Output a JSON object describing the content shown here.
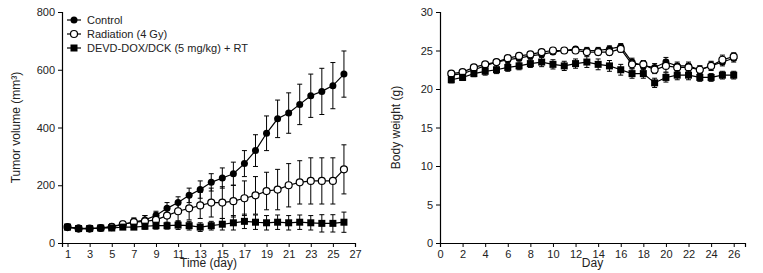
{
  "chart_data": [
    {
      "type": "line",
      "x_label": "Time (day)",
      "y_label": "Tumor volume (mm³)",
      "x": [
        1,
        2,
        3,
        4,
        5,
        6,
        7,
        8,
        9,
        10,
        11,
        12,
        13,
        14,
        15,
        16,
        17,
        18,
        19,
        20,
        21,
        22,
        23,
        24,
        25,
        26
      ],
      "xlim": [
        0.5,
        27
      ],
      "xticks": [
        1,
        3,
        5,
        7,
        9,
        11,
        13,
        15,
        17,
        19,
        21,
        23,
        25,
        27
      ],
      "ylim": [
        0,
        800
      ],
      "yticks": [
        0,
        200,
        400,
        600,
        800
      ],
      "legend": "upper left",
      "series": [
        {
          "name": "Control",
          "color": "#000000",
          "marker": "circle",
          "values": [
            55,
            52,
            50,
            52,
            58,
            65,
            72,
            80,
            95,
            120,
            140,
            165,
            185,
            210,
            225,
            240,
            275,
            320,
            380,
            430,
            450,
            480,
            510,
            525,
            545,
            585
          ],
          "errors": [
            5,
            5,
            5,
            5,
            8,
            10,
            12,
            15,
            15,
            20,
            20,
            25,
            30,
            30,
            35,
            40,
            45,
            55,
            60,
            65,
            70,
            70,
            75,
            80,
            80,
            80
          ]
        },
        {
          "name": "Radiation (4 Gy)",
          "color": "#000000",
          "marker": "open-circle",
          "values": [
            55,
            50,
            50,
            52,
            55,
            65,
            72,
            75,
            80,
            95,
            110,
            120,
            130,
            140,
            140,
            145,
            155,
            165,
            180,
            185,
            200,
            210,
            215,
            215,
            215,
            255
          ],
          "errors": [
            5,
            5,
            5,
            8,
            8,
            10,
            15,
            20,
            25,
            30,
            35,
            40,
            45,
            50,
            55,
            55,
            60,
            65,
            65,
            70,
            75,
            75,
            80,
            80,
            80,
            85
          ]
        },
        {
          "name": "DEVD-DOX/DCK (5 mg/kg) + RT",
          "color": "#000000",
          "marker": "square",
          "values": [
            55,
            50,
            50,
            52,
            52,
            55,
            55,
            58,
            60,
            60,
            62,
            60,
            55,
            60,
            65,
            70,
            75,
            72,
            70,
            72,
            70,
            72,
            70,
            68,
            68,
            72
          ],
          "errors": [
            5,
            5,
            5,
            5,
            5,
            5,
            8,
            10,
            12,
            12,
            15,
            15,
            15,
            15,
            20,
            25,
            25,
            25,
            25,
            25,
            25,
            25,
            25,
            30,
            30,
            35
          ]
        }
      ]
    },
    {
      "type": "line",
      "x_label": "Day",
      "y_label": "Body weight (g)",
      "x": [
        1,
        2,
        3,
        4,
        5,
        6,
        7,
        8,
        9,
        10,
        11,
        12,
        13,
        14,
        15,
        16,
        17,
        18,
        19,
        20,
        21,
        22,
        23,
        24,
        25,
        26
      ],
      "xlim": [
        0,
        27
      ],
      "xticks": [
        0,
        2,
        4,
        6,
        8,
        10,
        12,
        14,
        16,
        18,
        20,
        22,
        24,
        26
      ],
      "ylim": [
        0,
        30
      ],
      "yticks": [
        0,
        5,
        10,
        15,
        20,
        25,
        30
      ],
      "series": [
        {
          "color": "#000000",
          "marker": "circle",
          "values": [
            21.8,
            22.0,
            22.5,
            23.0,
            23.5,
            23.8,
            24.0,
            24.3,
            24.5,
            24.8,
            25.0,
            25.2,
            25.0,
            25.0,
            25.2,
            25.5,
            23.5,
            23.0,
            22.8,
            23.5,
            23.0,
            23.0,
            22.5,
            23.0,
            23.5,
            24.0
          ],
          "errors": [
            0.3,
            0.3,
            0.3,
            0.3,
            0.3,
            0.3,
            0.3,
            0.3,
            0.3,
            0.3,
            0.3,
            0.3,
            0.4,
            0.4,
            0.4,
            0.4,
            0.5,
            0.5,
            0.5,
            0.6,
            0.5,
            0.5,
            0.5,
            0.5,
            0.5,
            0.5
          ]
        },
        {
          "color": "#000000",
          "marker": "open-circle",
          "values": [
            22.0,
            22.2,
            22.8,
            23.2,
            23.5,
            24.0,
            24.3,
            24.5,
            24.8,
            25.0,
            25.0,
            25.0,
            24.8,
            24.8,
            24.8,
            25.2,
            23.2,
            23.2,
            22.5,
            23.0,
            22.8,
            22.8,
            22.5,
            23.0,
            23.8,
            24.2
          ],
          "errors": [
            0.3,
            0.3,
            0.3,
            0.3,
            0.3,
            0.3,
            0.3,
            0.3,
            0.3,
            0.3,
            0.3,
            0.3,
            0.4,
            0.4,
            0.4,
            0.4,
            0.5,
            0.5,
            0.5,
            0.8,
            0.5,
            0.5,
            0.5,
            0.6,
            0.6,
            0.5
          ]
        },
        {
          "color": "#000000",
          "marker": "square",
          "values": [
            21.2,
            21.5,
            22.0,
            22.3,
            22.5,
            22.8,
            23.0,
            23.3,
            23.5,
            23.2,
            23.0,
            23.3,
            23.5,
            23.2,
            23.0,
            22.5,
            22.0,
            22.0,
            20.8,
            21.5,
            21.8,
            21.8,
            21.5,
            21.5,
            21.8,
            21.8
          ],
          "errors": [
            0.4,
            0.4,
            0.4,
            0.5,
            0.5,
            0.5,
            0.5,
            0.5,
            0.6,
            0.6,
            0.6,
            0.6,
            0.7,
            0.7,
            0.7,
            0.7,
            0.6,
            0.6,
            0.6,
            0.6,
            0.6,
            0.6,
            0.5,
            0.5,
            0.5,
            0.5
          ]
        }
      ]
    }
  ]
}
